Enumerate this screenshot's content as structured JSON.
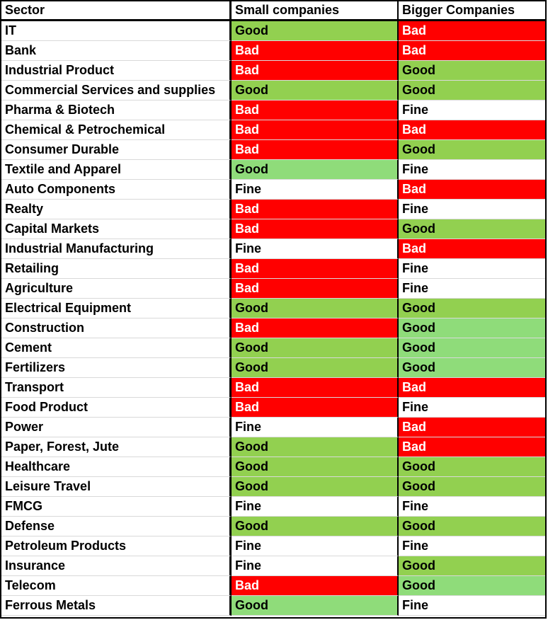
{
  "headers": [
    "Sector",
    "Small companies",
    "Bigger Companies"
  ],
  "colors": {
    "good": "#92d050",
    "bad": "#ff0000",
    "fine": "#ffffff"
  },
  "rows": [
    {
      "sector": "IT",
      "small": "Good",
      "bigger": "Bad"
    },
    {
      "sector": "Bank",
      "small": "Bad",
      "bigger": "Bad"
    },
    {
      "sector": "Industrial Product",
      "small": "Bad",
      "bigger": "Good"
    },
    {
      "sector": "Commercial Services and supplies",
      "small": "Good",
      "bigger": "Good"
    },
    {
      "sector": "Pharma & Biotech",
      "small": "Bad",
      "bigger": "Fine"
    },
    {
      "sector": "Chemical & Petrochemical",
      "small": "Bad",
      "bigger": "Bad"
    },
    {
      "sector": "Consumer Durable",
      "small": "Bad",
      "bigger": "Good"
    },
    {
      "sector": "Textile and Apparel",
      "small": "Good",
      "bigger": "Fine"
    },
    {
      "sector": "Auto Components",
      "small": "Fine",
      "bigger": "Bad"
    },
    {
      "sector": "Realty",
      "small": "Bad",
      "bigger": "Fine"
    },
    {
      "sector": "Capital Markets",
      "small": "Bad",
      "bigger": "Good"
    },
    {
      "sector": "Industrial Manufacturing",
      "small": "Fine",
      "bigger": "Bad"
    },
    {
      "sector": "Retailing",
      "small": "Bad",
      "bigger": "Fine"
    },
    {
      "sector": "Agriculture",
      "small": "Bad",
      "bigger": "Fine"
    },
    {
      "sector": "Electrical Equipment",
      "small": "Good",
      "bigger": "Good"
    },
    {
      "sector": "Construction",
      "small": "Bad",
      "bigger": "Good"
    },
    {
      "sector": "Cement",
      "small": "Good",
      "bigger": "Good"
    },
    {
      "sector": "Fertilizers",
      "small": "Good",
      "bigger": "Good"
    },
    {
      "sector": "Transport",
      "small": "Bad",
      "bigger": "Bad"
    },
    {
      "sector": "Food Product",
      "small": "Bad",
      "bigger": "Fine"
    },
    {
      "sector": "Power",
      "small": "Fine",
      "bigger": "Bad"
    },
    {
      "sector": "Paper, Forest, Jute",
      "small": "Good",
      "bigger": "Bad"
    },
    {
      "sector": "Healthcare",
      "small": "Good",
      "bigger": "Good"
    },
    {
      "sector": "Leisure Travel",
      "small": "Good",
      "bigger": "Good"
    },
    {
      "sector": "FMCG",
      "small": "Fine",
      "bigger": "Fine"
    },
    {
      "sector": "Defense",
      "small": "Good",
      "bigger": "Good"
    },
    {
      "sector": "Petroleum Products",
      "small": "Fine",
      "bigger": "Fine"
    },
    {
      "sector": "Insurance",
      "small": "Fine",
      "bigger": "Good"
    },
    {
      "sector": "Telecom",
      "small": "Bad",
      "bigger": "Good"
    },
    {
      "sector": "Ferrous Metals",
      "small": "Good",
      "bigger": "Fine"
    }
  ]
}
